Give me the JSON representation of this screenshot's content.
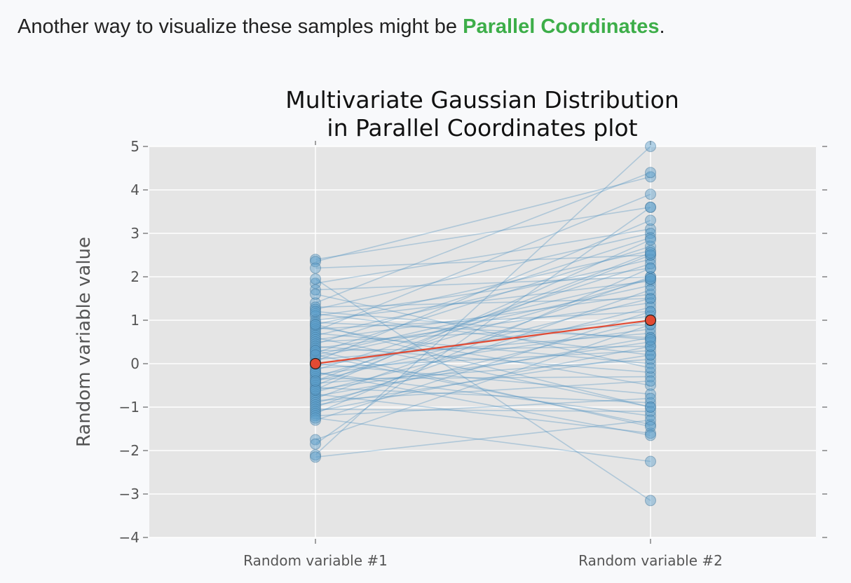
{
  "intro": {
    "text_before": "Another way to visualize these samples might be ",
    "link_text": "Parallel Coordinates",
    "text_after": "."
  },
  "colors": {
    "link": "#3dae49",
    "plot_background": "#e5e5e5",
    "grid": "#ffffff",
    "sample_line": "#4a90c0",
    "sample_point": "#5b9ec9",
    "mean_line": "#e24a33",
    "mean_point": "#e24a33"
  },
  "chart_data": {
    "type": "line",
    "style": "parallel-coordinates",
    "title": [
      "Multivariate Gaussian Distribution",
      "in Parallel Coordinates plot"
    ],
    "xlabel": "",
    "ylabel": "Random variable value",
    "categories": [
      "Random variable #1",
      "Random variable #2"
    ],
    "ylim": [
      -4,
      5
    ],
    "yticks": [
      5,
      4,
      3,
      2,
      1,
      0,
      -1,
      -2,
      -3,
      -4
    ],
    "ytick_labels": [
      "5",
      "4",
      "3",
      "2",
      "1",
      "0",
      "−1",
      "−2",
      "−3",
      "−4"
    ],
    "grid": true,
    "mean": {
      "values": [
        0,
        1
      ]
    },
    "samples": [
      [
        2.4,
        3.6
      ],
      [
        2.35,
        4.3
      ],
      [
        2.2,
        2.5
      ],
      [
        1.85,
        3.1
      ],
      [
        1.7,
        2.0
      ],
      [
        1.4,
        4.4
      ],
      [
        1.3,
        1.5
      ],
      [
        1.25,
        3.0
      ],
      [
        1.15,
        0.2
      ],
      [
        1.1,
        2.2
      ],
      [
        1.0,
        1.9
      ],
      [
        0.95,
        0.6
      ],
      [
        0.9,
        2.6
      ],
      [
        0.85,
        -0.5
      ],
      [
        0.8,
        1.2
      ],
      [
        0.75,
        3.9
      ],
      [
        0.7,
        0.0
      ],
      [
        0.65,
        2.4
      ],
      [
        0.6,
        -1.0
      ],
      [
        0.55,
        1.6
      ],
      [
        0.5,
        0.9
      ],
      [
        0.45,
        2.9
      ],
      [
        0.4,
        -0.2
      ],
      [
        0.35,
        1.4
      ],
      [
        0.3,
        0.4
      ],
      [
        0.25,
        2.7
      ],
      [
        0.2,
        -1.4
      ],
      [
        0.15,
        1.8
      ],
      [
        0.1,
        0.7
      ],
      [
        0.05,
        3.3
      ],
      [
        0.0,
        -0.7
      ],
      [
        -0.05,
        1.1
      ],
      [
        -0.1,
        0.3
      ],
      [
        -0.15,
        2.3
      ],
      [
        -0.2,
        -1.2
      ],
      [
        -0.25,
        0.8
      ],
      [
        -0.3,
        1.95
      ],
      [
        -0.35,
        -0.3
      ],
      [
        -0.4,
        1.5
      ],
      [
        -0.45,
        0.1
      ],
      [
        -0.5,
        2.5
      ],
      [
        -0.55,
        -0.9
      ],
      [
        -0.6,
        0.5
      ],
      [
        -0.65,
        1.3
      ],
      [
        -0.7,
        -1.6
      ],
      [
        -0.75,
        0.6
      ],
      [
        -0.8,
        2.0
      ],
      [
        -0.85,
        -0.4
      ],
      [
        -0.9,
        1.0
      ],
      [
        -0.95,
        0.2
      ],
      [
        -1.0,
        1.7
      ],
      [
        -1.05,
        -1.1
      ],
      [
        -1.1,
        0.4
      ],
      [
        -1.15,
        2.2
      ],
      [
        -1.2,
        -0.8
      ],
      [
        -1.3,
        1.2
      ],
      [
        -1.75,
        0.9
      ],
      [
        -1.85,
        3.6
      ],
      [
        -2.1,
        5.0
      ],
      [
        -2.15,
        -1.3
      ],
      [
        1.95,
        -3.15
      ],
      [
        1.6,
        -0.1
      ],
      [
        -1.25,
        -2.25
      ],
      [
        0.3,
        -1.45
      ],
      [
        -0.2,
        -1.65
      ],
      [
        0.9,
        -1.0
      ],
      [
        -0.6,
        2.85
      ],
      [
        0.2,
        1.95
      ],
      [
        1.2,
        0.55
      ],
      [
        -0.4,
        2.55
      ]
    ]
  }
}
